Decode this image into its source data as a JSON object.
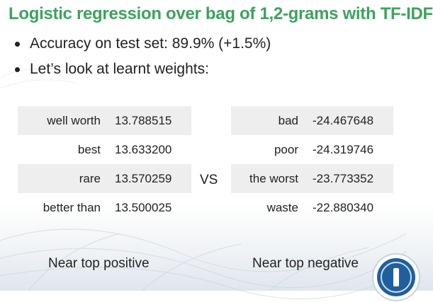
{
  "slide": {
    "title": "Logistic regression over bag of 1,2-grams with TF-IDF",
    "bullets": [
      "Accuracy on test set: 89.9% (+1.5%)",
      "Let’s look at learnt weights:"
    ],
    "vs_label": "VS",
    "positive_caption": "Near top positive",
    "negative_caption": "Near top negative"
  },
  "positive_weights": [
    {
      "term": "well worth",
      "weight": "13.788515"
    },
    {
      "term": "best",
      "weight": "13.633200"
    },
    {
      "term": "rare",
      "weight": "13.570259"
    },
    {
      "term": "better than",
      "weight": "13.500025"
    }
  ],
  "negative_weights": [
    {
      "term": "bad",
      "weight": "-24.467648"
    },
    {
      "term": "poor",
      "weight": "-24.319746"
    },
    {
      "term": "the worst",
      "weight": "-23.773352"
    },
    {
      "term": "waste",
      "weight": "-22.880340"
    }
  ],
  "colors": {
    "title_green": "#3da35d",
    "row_shade": "#eeeeee",
    "text": "#222222",
    "logo_blue": "#1f5f9e"
  },
  "icons": {
    "logo": "circular-logo-icon"
  }
}
